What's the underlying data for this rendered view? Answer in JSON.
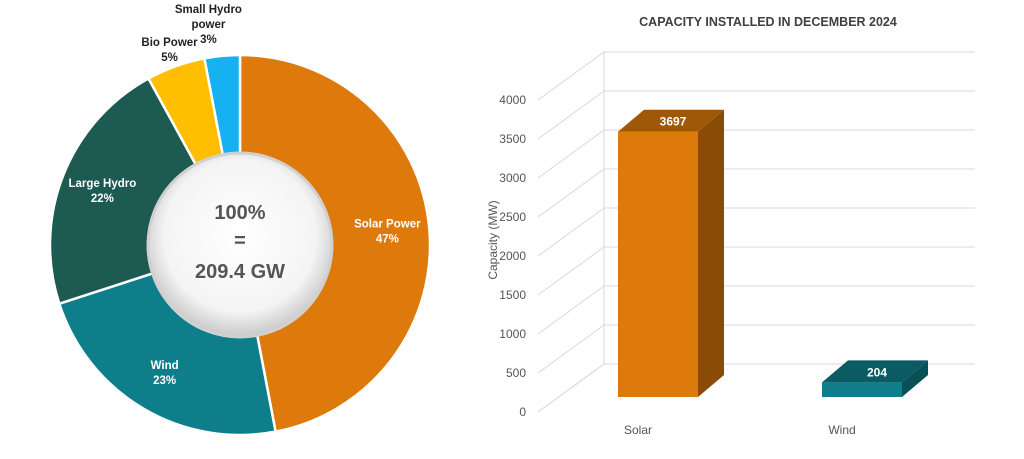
{
  "chart_data": [
    {
      "type": "pie",
      "variant": "donut",
      "center_text": [
        "100%",
        "=",
        "209.4 GW"
      ],
      "slices": [
        {
          "name": "Solar Power",
          "percent": 47,
          "label_lines": [
            "Solar Power",
            "47%"
          ],
          "color": "#DD7A0B"
        },
        {
          "name": "Wind",
          "percent": 23,
          "label_lines": [
            "Wind",
            "23%"
          ],
          "color": "#0E7F8A"
        },
        {
          "name": "Large Hydro",
          "percent": 22,
          "label_lines": [
            "Large Hydro",
            "22%"
          ],
          "color": "#1C5A52"
        },
        {
          "name": "Bio Power",
          "percent": 5,
          "label_lines": [
            "Bio Power",
            "5%"
          ],
          "color": "#FFBF00"
        },
        {
          "name": "Small Hydro power",
          "percent": 3,
          "label_lines": [
            "Small Hydro",
            "power",
            "3%"
          ],
          "color": "#16B1F0"
        }
      ]
    },
    {
      "type": "bar",
      "style": "3d",
      "title": "CAPACITY INSTALLED IN DECEMBER 2024",
      "ylabel": "Capacity (MW)",
      "xlabel": "",
      "categories": [
        "Solar",
        "Wind"
      ],
      "values": [
        3697,
        204
      ],
      "data_labels": [
        "3697",
        "204"
      ],
      "colors": [
        "#DD7A0B",
        "#0E7F8A"
      ],
      "ylim": [
        0,
        4000
      ],
      "yticks": [
        0,
        500,
        1000,
        1500,
        2000,
        2500,
        3000,
        3500,
        4000
      ],
      "grid": true,
      "legend": "none"
    }
  ]
}
